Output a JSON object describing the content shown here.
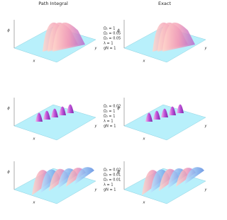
{
  "columns": [
    "Path Integral",
    "Exact"
  ],
  "panels": [
    {
      "params": [
        "Ω₁ = 1",
        "Ω₂ = 0.05",
        "Ω₃ = 0.05",
        "λ = 1",
        "gN = 1"
      ]
    },
    {
      "params": [
        "Ω₁ = 0.02",
        "Ω₂ = 1",
        "Ω₃ = 1",
        "λ = 1",
        "gN = 1"
      ]
    },
    {
      "params": [
        "Ω₁ = 0.02",
        "Ω₂ = 0.01",
        "Ω₃ = 0.01",
        "λ = 1",
        "gN = 1"
      ]
    }
  ],
  "axes": {
    "x": "x",
    "y": "y",
    "z": "ϕ"
  }
}
